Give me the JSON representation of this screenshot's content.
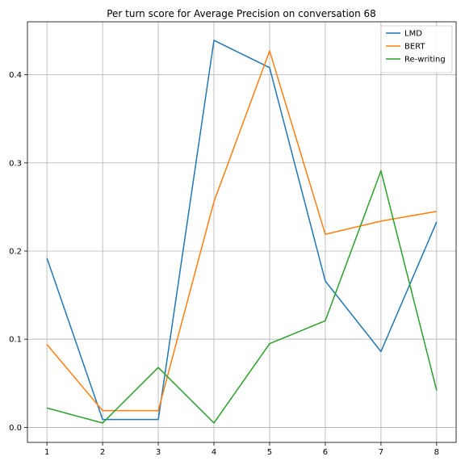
{
  "chart_data": {
    "type": "line",
    "title": "Per turn score for Average Precision on conversation 68",
    "xlabel": "",
    "ylabel": "",
    "x": [
      1,
      2,
      3,
      4,
      5,
      6,
      7,
      8
    ],
    "xlim": [
      0.65,
      8.35
    ],
    "ylim": [
      -0.017,
      0.46
    ],
    "xticks": [
      "1",
      "2",
      "3",
      "4",
      "5",
      "6",
      "7",
      "8"
    ],
    "yticks": [
      0.0,
      0.1,
      0.2,
      0.3,
      0.4
    ],
    "ytick_labels": [
      "0.0",
      "0.1",
      "0.2",
      "0.3",
      "0.4"
    ],
    "grid": true,
    "legend_position": "top-right",
    "series": [
      {
        "name": "LMD",
        "color": "#1f77b4",
        "values": [
          0.192,
          0.009,
          0.009,
          0.439,
          0.408,
          0.166,
          0.086,
          0.233
        ]
      },
      {
        "name": "BERT",
        "color": "#ff7f0e",
        "values": [
          0.094,
          0.019,
          0.019,
          0.256,
          0.427,
          0.219,
          0.234,
          0.245
        ]
      },
      {
        "name": "Re-writing",
        "color": "#2ca02c",
        "values": [
          0.022,
          0.005,
          0.068,
          0.005,
          0.095,
          0.121,
          0.291,
          0.042
        ]
      }
    ]
  }
}
